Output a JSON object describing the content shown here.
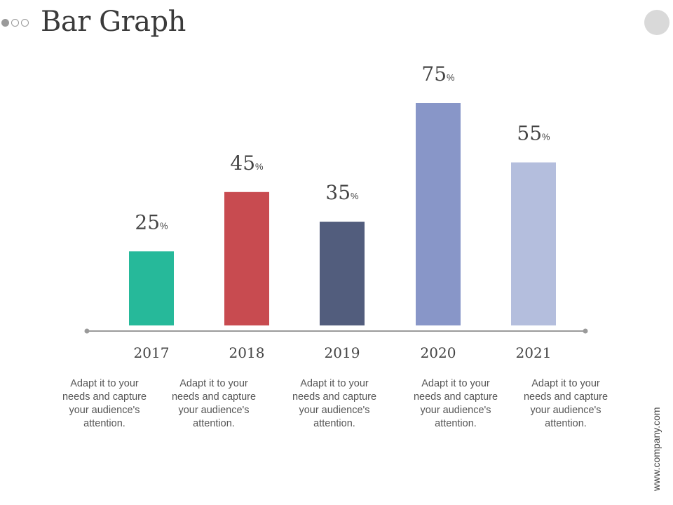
{
  "header": {
    "title": "Bar Graph",
    "pager_dots": [
      true,
      false,
      false
    ]
  },
  "footer": {
    "url": "www.company.com"
  },
  "chart_data": {
    "type": "bar",
    "categories": [
      "2017",
      "2018",
      "2019",
      "2020",
      "2021"
    ],
    "values": [
      25,
      45,
      35,
      75,
      55
    ],
    "value_unit": "%",
    "colors": [
      "#26b99a",
      "#c84b50",
      "#525d7d",
      "#8896c8",
      "#b4bedd"
    ],
    "ylim": [
      0,
      75
    ],
    "grid": false,
    "axis_color": "#9a9a9a",
    "descriptions": [
      "Adapt it to your needs and capture your audience's attention.",
      "Adapt it to your needs and capture your audience's attention.",
      "Adapt it to your needs and capture your audience's attention.",
      "Adapt it to your needs and capture your audience's attention.",
      "Adapt it to your needs and capture your audience's attention."
    ]
  }
}
